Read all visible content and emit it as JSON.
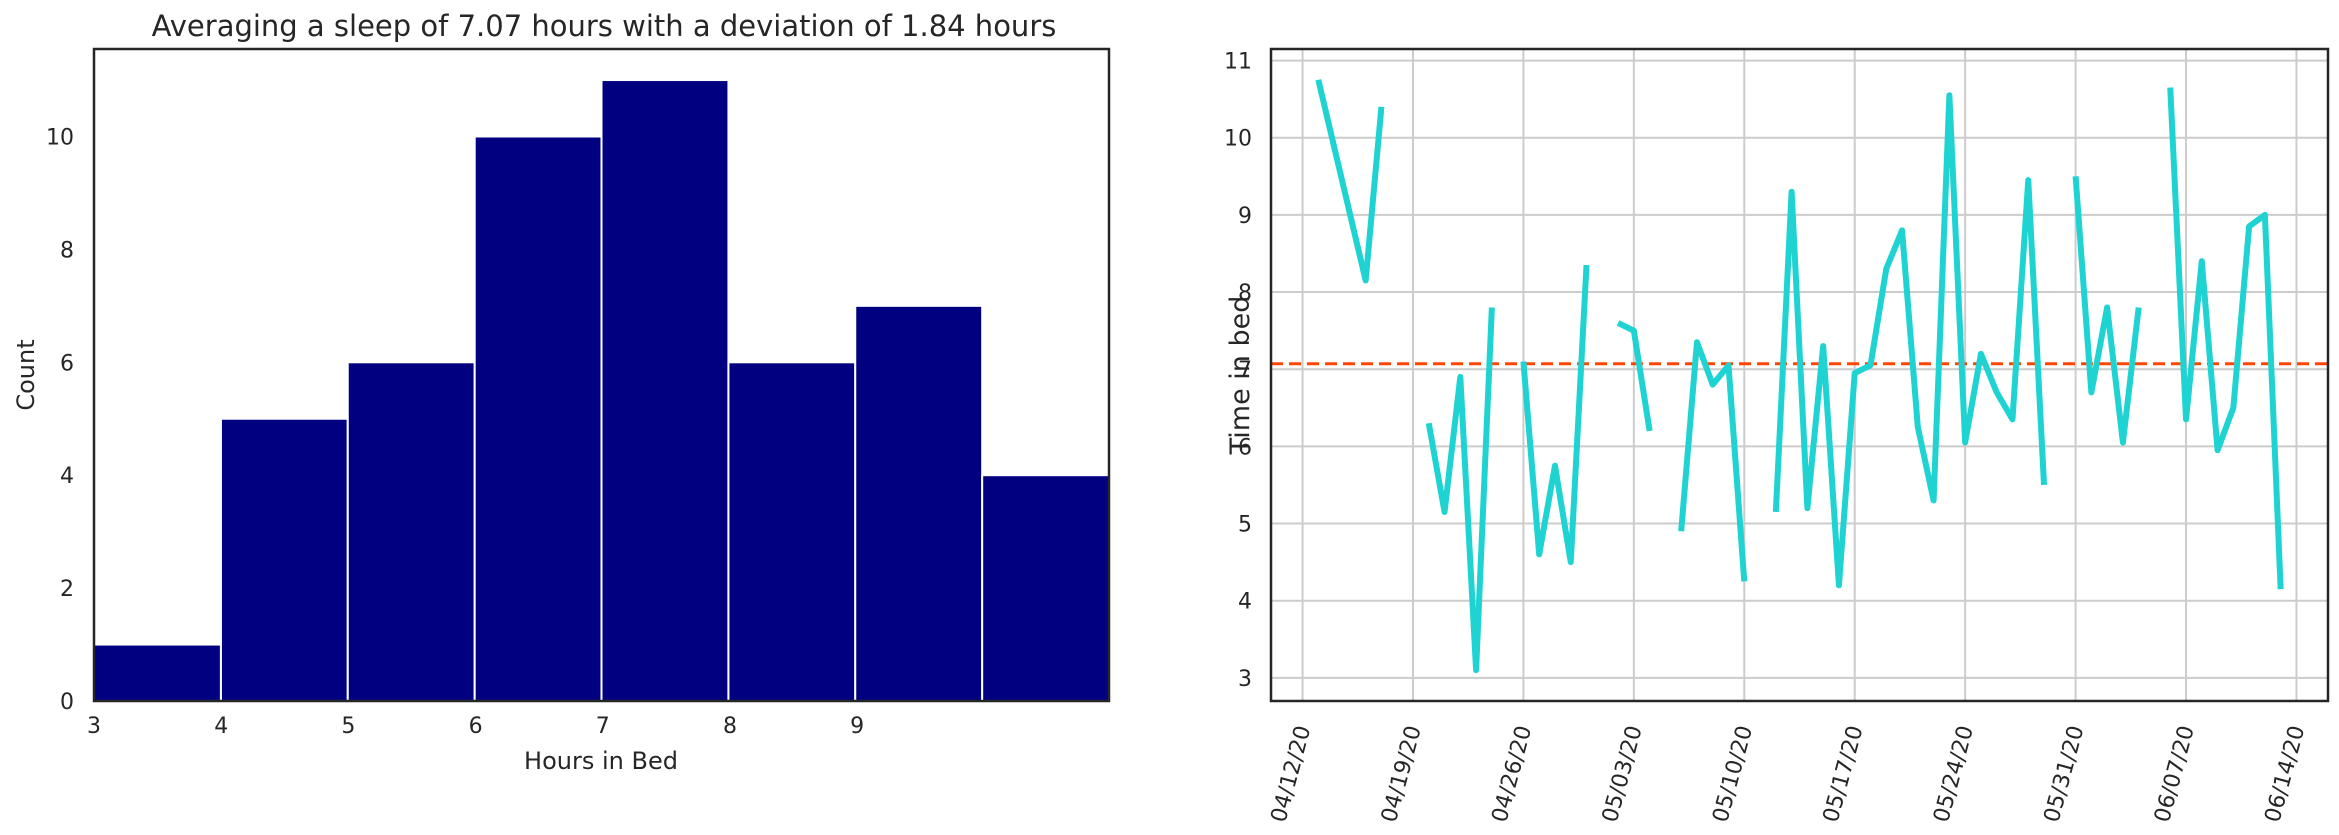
{
  "chart_data": [
    {
      "type": "bar",
      "title": "Averaging a sleep of 7.07 hours with a deviation of 1.84 hours",
      "xlabel": "Hours in Bed",
      "ylabel": "Count",
      "xlim": [
        3,
        10.98
      ],
      "ylim": [
        0,
        11.55
      ],
      "xticks": [
        3,
        4,
        5,
        6,
        7,
        8,
        9
      ],
      "yticks": [
        0,
        2,
        4,
        6,
        8,
        10
      ],
      "bin_edges": [
        3.0,
        3.998,
        4.995,
        5.993,
        6.99,
        7.988,
        8.985,
        9.983,
        10.98
      ],
      "values": [
        1,
        5,
        6,
        10,
        11,
        6,
        7,
        4
      ],
      "bar_color": "#000080",
      "grid": false
    },
    {
      "type": "line",
      "title": "",
      "xlabel": "",
      "ylabel": "Time in bed",
      "xlim": [
        "2020-04-10",
        "2020-06-16"
      ],
      "ylim": [
        2.7,
        11.15
      ],
      "xticks": [
        "04/12/20",
        "04/19/20",
        "04/26/20",
        "05/03/20",
        "05/10/20",
        "05/17/20",
        "05/24/20",
        "05/31/20",
        "06/07/20",
        "06/14/20"
      ],
      "yticks": [
        3,
        4,
        5,
        6,
        7,
        8,
        9,
        10,
        11
      ],
      "line_color": "#1fd3d3",
      "mean_line": {
        "value": 7.07,
        "color": "#ff4500",
        "style": "dashed"
      },
      "grid": true,
      "series": [
        {
          "x": [
            "2020-04-13",
            "2020-04-16",
            "2020-04-17"
          ],
          "y": [
            10.75,
            8.15,
            10.4
          ]
        },
        {
          "x": [
            "2020-04-20",
            "2020-04-21",
            "2020-04-22",
            "2020-04-23",
            "2020-04-24"
          ],
          "y": [
            6.3,
            5.15,
            6.9,
            3.1,
            7.8
          ]
        },
        {
          "x": [
            "2020-04-26",
            "2020-04-27",
            "2020-04-28",
            "2020-04-29",
            "2020-04-30"
          ],
          "y": [
            7.1,
            4.6,
            5.75,
            4.5,
            8.35
          ]
        },
        {
          "x": [
            "2020-05-02",
            "2020-05-03",
            "2020-05-04"
          ],
          "y": [
            7.6,
            7.5,
            6.2
          ]
        },
        {
          "x": [
            "2020-05-06",
            "2020-05-07",
            "2020-05-08",
            "2020-05-09",
            "2020-05-10"
          ],
          "y": [
            4.9,
            7.35,
            6.8,
            7.05,
            4.25
          ]
        },
        {
          "x": [
            "2020-05-12",
            "2020-05-13",
            "2020-05-14",
            "2020-05-15",
            "2020-05-16",
            "2020-05-17",
            "2020-05-18",
            "2020-05-19",
            "2020-05-20",
            "2020-05-21",
            "2020-05-22",
            "2020-05-23",
            "2020-05-24",
            "2020-05-25",
            "2020-05-26",
            "2020-05-27",
            "2020-05-28",
            "2020-05-29"
          ],
          "y": [
            5.15,
            9.3,
            5.2,
            7.3,
            4.2,
            6.95,
            7.05,
            8.3,
            8.8,
            6.25,
            5.3,
            10.55,
            6.05,
            7.2,
            6.7,
            6.35,
            9.45,
            5.5
          ]
        },
        {
          "x": [
            "2020-05-31",
            "2020-06-01",
            "2020-06-02",
            "2020-06-03",
            "2020-06-04"
          ],
          "y": [
            9.5,
            6.7,
            7.8,
            6.05,
            7.8
          ]
        },
        {
          "x": [
            "2020-06-06",
            "2020-06-07",
            "2020-06-08",
            "2020-06-09",
            "2020-06-10",
            "2020-06-11",
            "2020-06-12",
            "2020-06-13"
          ],
          "y": [
            10.65,
            6.35,
            8.4,
            5.95,
            6.5,
            8.85,
            9.0,
            4.15
          ]
        }
      ]
    }
  ]
}
